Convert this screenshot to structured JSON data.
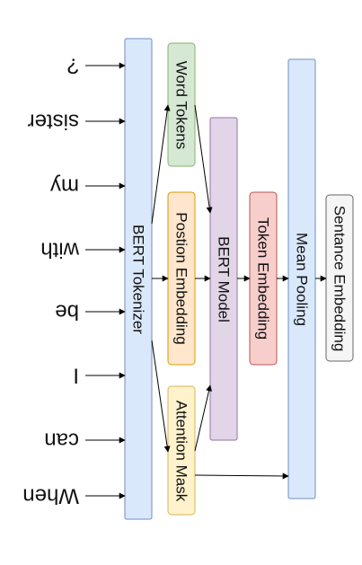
{
  "input_words": [
    "When",
    "can",
    "I",
    "be",
    "with",
    "my",
    "sister",
    "?"
  ],
  "tokenizer": {
    "label": "BERT Tokenizer",
    "fill": "#dae8fc",
    "stroke": "#6c8ebf"
  },
  "word_tokens": {
    "label": "Word Tokens",
    "fill": "#d5e8d4",
    "stroke": "#82b366"
  },
  "position_embedding": {
    "label": "Postion Embedding",
    "fill": "#ffe6cc",
    "stroke": "#d79b00"
  },
  "attention_mask": {
    "label": "Attention Mask",
    "fill": "#fff2cc",
    "stroke": "#d6b656"
  },
  "bert_model": {
    "label": "BERT Model",
    "fill": "#e1d5e7",
    "stroke": "#9673a6"
  },
  "token_embedding": {
    "label": "Token Embedding",
    "fill": "#f8cecc",
    "stroke": "#b85450"
  },
  "mean_pooling": {
    "label": "Mean Pooling",
    "fill": "#dae8fc",
    "stroke": "#6c8ebf"
  },
  "sentence_embedding": {
    "label": "Sentance Embedding",
    "fill": "#f5f5f5",
    "stroke": "#666666"
  }
}
